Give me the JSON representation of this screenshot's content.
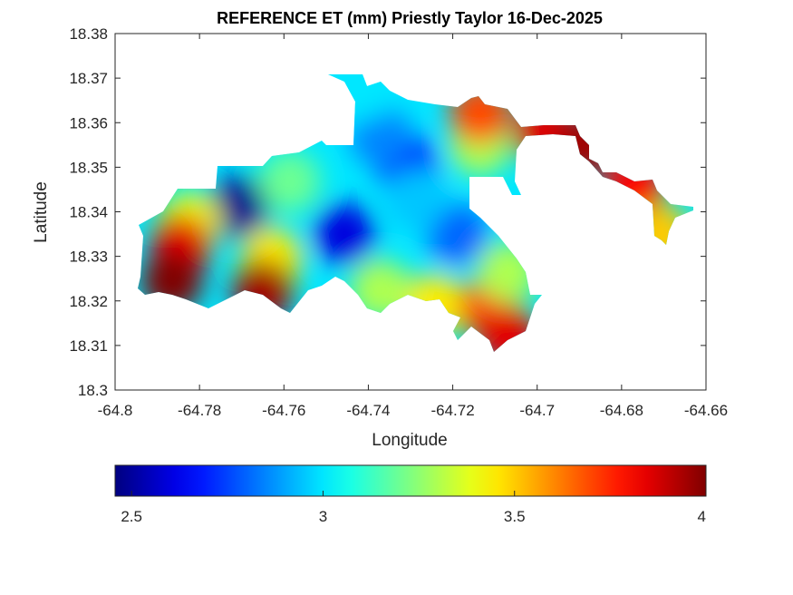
{
  "chart_data": {
    "type": "heatmap",
    "subtype": "filled-contour-map",
    "title": "REFERENCE ET (mm) Priestly Taylor 16-Dec-2025",
    "xlabel": "Longitude",
    "ylabel": "Latitude",
    "xlim": [
      -64.8,
      -64.66
    ],
    "ylim": [
      18.3,
      18.38
    ],
    "xticks": [
      -64.8,
      -64.78,
      -64.76,
      -64.74,
      -64.72,
      -64.7,
      -64.68,
      -64.66
    ],
    "xtick_labels": [
      "-64.8",
      "-64.78",
      "-64.76",
      "-64.74",
      "-64.72",
      "-64.7",
      "-64.68",
      "-64.66"
    ],
    "yticks": [
      18.3,
      18.31,
      18.32,
      18.33,
      18.34,
      18.35,
      18.36,
      18.37,
      18.38
    ],
    "ytick_labels": [
      "18.3",
      "18.31",
      "18.32",
      "18.33",
      "18.34",
      "18.35",
      "18.36",
      "18.37",
      "18.38"
    ],
    "grid": false,
    "colormap": "jet",
    "clim": [
      2.457,
      4.0
    ],
    "colorbar": {
      "location": "bottom",
      "ticks": [
        2.5,
        3,
        3.5,
        4
      ],
      "tick_labels": [
        "2.5",
        "3",
        "3.5",
        "4"
      ]
    },
    "base_value": 3.0,
    "field_samples": [
      {
        "lon": -64.771,
        "lat": 18.3411,
        "value": 2.48
      },
      {
        "lon": -64.7457,
        "lat": 18.335,
        "value": 2.6
      },
      {
        "lon": -64.7307,
        "lat": 18.3503,
        "value": 2.65
      },
      {
        "lon": -64.7189,
        "lat": 18.335,
        "value": 2.8
      },
      {
        "lon": -64.7371,
        "lat": 18.357,
        "value": 2.85
      },
      {
        "lon": -64.7285,
        "lat": 18.3427,
        "value": 2.95
      },
      {
        "lon": -64.7586,
        "lat": 18.3468,
        "value": 3.2
      },
      {
        "lon": -64.7414,
        "lat": 18.3672,
        "value": 3.0
      },
      {
        "lon": -64.7135,
        "lat": 18.355,
        "value": 3.3
      },
      {
        "lon": -64.7135,
        "lat": 18.3621,
        "value": 3.7
      },
      {
        "lon": -64.6984,
        "lat": 18.358,
        "value": 3.85
      },
      {
        "lon": -64.6888,
        "lat": 18.355,
        "value": 3.95
      },
      {
        "lon": -64.677,
        "lat": 18.3458,
        "value": 3.8
      },
      {
        "lon": -64.6705,
        "lat": 18.3346,
        "value": 3.5
      },
      {
        "lon": -64.7822,
        "lat": 18.3376,
        "value": 3.4
      },
      {
        "lon": -64.7629,
        "lat": 18.3295,
        "value": 3.45
      },
      {
        "lon": -64.7843,
        "lat": 18.3326,
        "value": 3.85
      },
      {
        "lon": -64.7865,
        "lat": 18.3244,
        "value": 4.0
      },
      {
        "lon": -64.765,
        "lat": 18.3224,
        "value": 3.95
      },
      {
        "lon": -64.7242,
        "lat": 18.3193,
        "value": 3.45
      },
      {
        "lon": -64.7113,
        "lat": 18.3183,
        "value": 3.7
      },
      {
        "lon": -64.707,
        "lat": 18.3122,
        "value": 3.85
      },
      {
        "lon": -64.7371,
        "lat": 18.3224,
        "value": 3.3
      },
      {
        "lon": -64.707,
        "lat": 18.3265,
        "value": 3.3
      }
    ]
  }
}
